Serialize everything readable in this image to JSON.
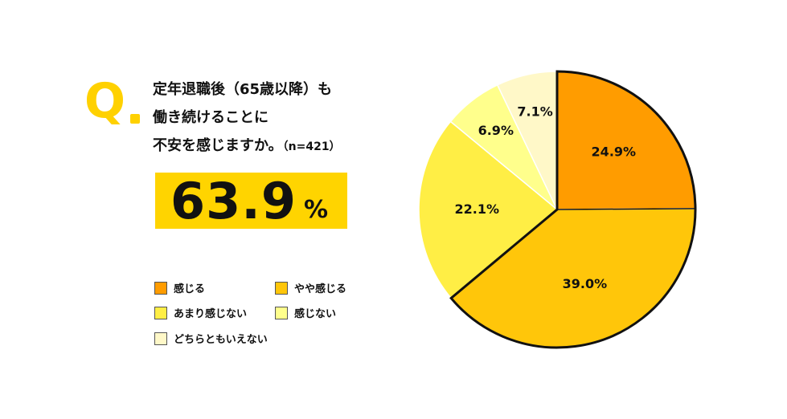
{
  "question": {
    "mark": "Q",
    "lines": [
      "定年退職後（65歳以降）も",
      "働き続けることに",
      "不安を感じますか。"
    ],
    "sample": "（n=421）"
  },
  "headline": {
    "value": "63.9",
    "unit": "%"
  },
  "colors": {
    "border": "#111111",
    "accent": "#FFD100"
  },
  "chart_data": {
    "type": "pie",
    "start_angle_deg": 0,
    "direction": "clockwise",
    "slices": [
      {
        "label": "感じる",
        "value": 24.9,
        "display": "24.9%",
        "color": "#FF9C00",
        "highlight": true
      },
      {
        "label": "やや感じる",
        "value": 39.0,
        "display": "39.0%",
        "color": "#FFC60A",
        "highlight": true
      },
      {
        "label": "あまり感じない",
        "value": 22.1,
        "display": "22.1%",
        "color": "#FFEE45",
        "highlight": false
      },
      {
        "label": "感じない",
        "value": 6.9,
        "display": "6.9%",
        "color": "#FFFF8C",
        "highlight": false
      },
      {
        "label": "どちらともいえない",
        "value": 7.1,
        "display": "7.1%",
        "color": "#FFF8C8",
        "highlight": false
      }
    ],
    "legend": [
      "感じる",
      "やや感じる",
      "あまり感じない",
      "感じない",
      "どちらともいえない"
    ]
  }
}
